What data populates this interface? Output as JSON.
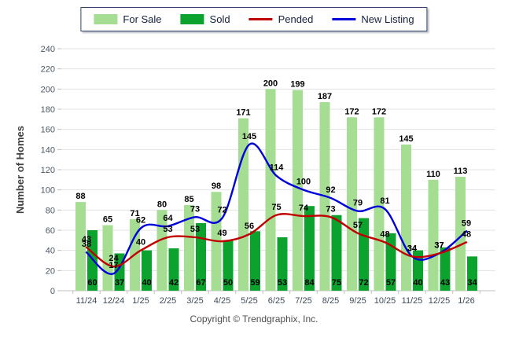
{
  "colors": {
    "for_sale": "#a5dd93",
    "sold": "#0ba32e",
    "pended": "#c00000",
    "new_listing": "#0000dc",
    "grid": "#e3e3e3",
    "axis": "#c0c0c0",
    "tick_label": "#4a5765",
    "x_label": "#3d4b5a",
    "value_label": "#000000",
    "axis_title": "#404040"
  },
  "legend": {
    "items": [
      {
        "label": "For Sale",
        "type": "bar",
        "color_key": "for_sale"
      },
      {
        "label": "Sold",
        "type": "bar",
        "color_key": "sold"
      },
      {
        "label": "Pended",
        "type": "line",
        "color_key": "pended"
      },
      {
        "label": "New Listing",
        "type": "line",
        "color_key": "new_listing"
      }
    ]
  },
  "footer": {
    "copyright": "Copyright © Trendgraphix, Inc."
  },
  "chart_data": {
    "type": "bar",
    "subtype": "grouped-bars-with-smooth-lines",
    "title": "",
    "xlabel": "",
    "ylabel": "Number of Homes",
    "ylim": [
      0,
      240
    ],
    "ytick_step": 20,
    "grid": true,
    "legend_position": "top",
    "categories": [
      "11/24",
      "12/24",
      "1/25",
      "2/25",
      "3/25",
      "4/25",
      "5/25",
      "6/25",
      "7/25",
      "8/25",
      "9/25",
      "10/25",
      "11/25",
      "12/25",
      "1/26"
    ],
    "series": [
      {
        "name": "For Sale",
        "type": "bar",
        "color_key": "for_sale",
        "values": [
          88,
          65,
          71,
          80,
          85,
          98,
          171,
          200,
          199,
          187,
          172,
          172,
          145,
          110,
          113
        ]
      },
      {
        "name": "Sold",
        "type": "bar",
        "color_key": "sold",
        "values": [
          60,
          37,
          40,
          42,
          67,
          50,
          59,
          53,
          84,
          75,
          72,
          57,
          40,
          43,
          34
        ]
      },
      {
        "name": "Pended",
        "type": "line",
        "color_key": "pended",
        "values": [
          43,
          24,
          40,
          53,
          53,
          49,
          56,
          75,
          74,
          73,
          57,
          48,
          34,
          37,
          48
        ]
      },
      {
        "name": "New Listing",
        "type": "line",
        "color_key": "new_listing",
        "values": [
          38,
          17,
          62,
          64,
          73,
          72,
          145,
          114,
          100,
          92,
          79,
          81,
          34,
          37,
          59
        ]
      }
    ]
  }
}
